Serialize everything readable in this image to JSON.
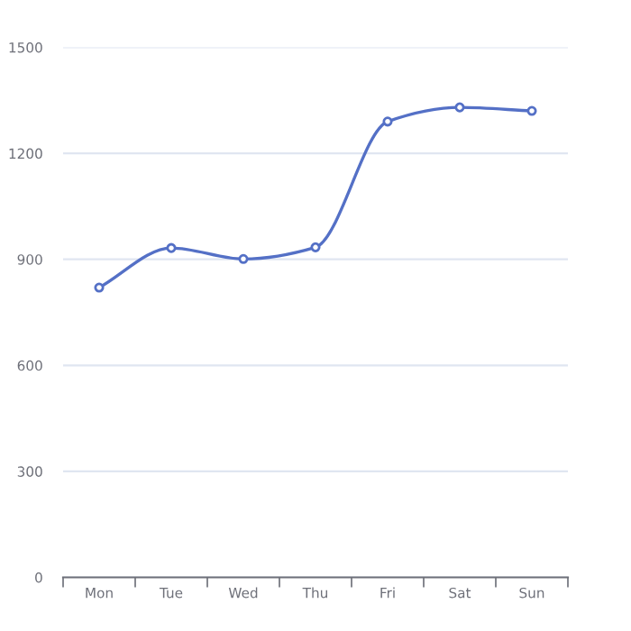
{
  "chart_data": {
    "type": "line",
    "categories": [
      "Mon",
      "Tue",
      "Wed",
      "Thu",
      "Fri",
      "Sat",
      "Sun"
    ],
    "series": [
      {
        "color": "#5470c6",
        "values": [
          820,
          932,
          901,
          934,
          1290,
          1330,
          1320
        ]
      }
    ],
    "ylim": [
      0,
      1500
    ],
    "yticks": [
      0,
      300,
      600,
      900,
      1200,
      1500
    ],
    "grid": "y",
    "marker": "circle",
    "line_style": "solid",
    "legend": false
  }
}
